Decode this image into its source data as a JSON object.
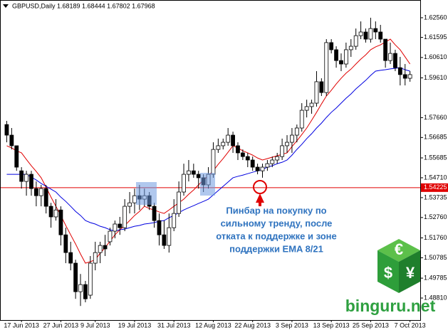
{
  "chart_data": {
    "type": "candlestick",
    "title": "GBPUSD,Daily  1.68189 1.68444 1.67802 1.67968",
    "categories": [
      null,
      null,
      null,
      "17 Jun 2013",
      null,
      null,
      null,
      null,
      null,
      null,
      null,
      "27 Jun 2013",
      null,
      null,
      null,
      null,
      null,
      null,
      "9 Jul 2013",
      null,
      null,
      null,
      null,
      null,
      null,
      null,
      "19 Jul 2013",
      null,
      null,
      null,
      null,
      null,
      null,
      null,
      "31 Jul 2013",
      null,
      null,
      null,
      null,
      null,
      null,
      null,
      "12 Aug 2013",
      null,
      null,
      null,
      null,
      null,
      null,
      null,
      "22 Aug 2013",
      null,
      null,
      null,
      null,
      null,
      null,
      null,
      "3 Sep 2013",
      null,
      null,
      null,
      null,
      null,
      null,
      null,
      "13 Sep 2013",
      null,
      null,
      null,
      null,
      null,
      null,
      null,
      "25 Sep 2013",
      null,
      null,
      null,
      null,
      null,
      null,
      null,
      "7 Oct 2013"
    ],
    "open": [
      1.5732,
      1.568,
      1.5628,
      1.5505,
      1.5453,
      1.5488,
      1.5418,
      1.5383,
      1.5418,
      1.5331,
      1.5279,
      1.5313,
      1.5191,
      1.5104,
      1.5052,
      1.4912,
      1.4947,
      1.4895,
      1.5052,
      1.5104,
      1.5139,
      1.5157,
      1.5209,
      1.5244,
      1.5226,
      1.5331,
      1.5348,
      1.5383,
      1.5366,
      1.5383,
      1.5331,
      1.5261,
      1.5191,
      1.5139,
      1.5226,
      1.5296,
      1.5401,
      1.5488,
      1.5505,
      1.5488,
      1.5471,
      1.5436,
      1.5488,
      1.561,
      1.5628,
      1.5645,
      1.568,
      1.5628,
      1.5593,
      1.5575,
      1.5558,
      1.5523,
      1.5505,
      1.5523,
      1.554,
      1.5558,
      1.5575,
      1.5628,
      1.5645,
      1.568,
      1.5715,
      1.5802,
      1.582,
      1.5837,
      1.5942,
      1.5889,
      1.6134,
      1.6099,
      1.6046,
      1.6029,
      1.6099,
      1.6116,
      1.6168,
      1.6186,
      1.6151,
      1.6203,
      1.6186,
      1.6151,
      1.6046,
      1.6081,
      1.6011,
      1.5977,
      1.5959
    ],
    "high": [
      1.575,
      1.5715,
      1.5628,
      1.5523,
      1.5505,
      1.5505,
      1.5453,
      1.5436,
      1.5436,
      1.5348,
      1.5366,
      1.5331,
      1.5226,
      1.5157,
      1.5069,
      1.4999,
      1.4965,
      1.5087,
      1.5157,
      1.5157,
      1.5191,
      1.5226,
      1.5261,
      1.5279,
      1.5366,
      1.5401,
      1.5418,
      1.5436,
      1.5418,
      1.5401,
      1.5348,
      1.5296,
      1.5261,
      1.5296,
      1.5366,
      1.5453,
      1.554,
      1.5558,
      1.554,
      1.5505,
      1.5488,
      1.5523,
      1.5645,
      1.5663,
      1.5663,
      1.5715,
      1.5697,
      1.5645,
      1.561,
      1.5593,
      1.5575,
      1.554,
      1.554,
      1.5558,
      1.5575,
      1.5593,
      1.5663,
      1.568,
      1.5715,
      1.5732,
      1.5837,
      1.5854,
      1.5854,
      1.5994,
      1.5959,
      1.6151,
      1.6151,
      1.6116,
      1.6081,
      1.6134,
      1.6151,
      1.6203,
      1.6238,
      1.6203,
      1.6256,
      1.6238,
      1.6221,
      1.6151,
      1.6134,
      1.6099,
      1.6064,
      1.6029,
      1.5994
    ],
    "low": [
      1.5645,
      1.561,
      1.5505,
      1.5418,
      1.5383,
      1.5383,
      1.5331,
      1.5331,
      1.5296,
      1.5226,
      1.5261,
      1.5139,
      1.5052,
      1.5017,
      1.4877,
      1.4842,
      1.486,
      1.4877,
      1.5017,
      1.5052,
      1.5087,
      1.5139,
      1.5174,
      1.5191,
      1.5209,
      1.5296,
      1.5296,
      1.5313,
      1.5331,
      1.5313,
      1.5226,
      1.5139,
      1.5122,
      1.5104,
      1.5209,
      1.5279,
      1.5383,
      1.5453,
      1.5471,
      1.5418,
      1.5401,
      1.5418,
      1.5471,
      1.5593,
      1.561,
      1.5628,
      1.5593,
      1.5558,
      1.5558,
      1.5523,
      1.5505,
      1.5488,
      1.5471,
      1.5505,
      1.5523,
      1.554,
      1.5558,
      1.5593,
      1.5593,
      1.5645,
      1.5697,
      1.5767,
      1.5785,
      1.582,
      1.5872,
      1.5872,
      1.6081,
      1.6011,
      1.5994,
      1.6011,
      1.6064,
      1.6099,
      1.6151,
      1.6134,
      1.6134,
      1.6151,
      1.6134,
      1.6011,
      1.6029,
      1.5994,
      1.5924,
      1.5924,
      1.5942
    ],
    "close": [
      1.568,
      1.5628,
      1.5523,
      1.5453,
      1.5488,
      1.5418,
      1.5383,
      1.5418,
      1.5331,
      1.5279,
      1.5313,
      1.5191,
      1.5104,
      1.5052,
      1.4912,
      1.4947,
      1.4877,
      1.5052,
      1.5104,
      1.5139,
      1.5122,
      1.5209,
      1.5244,
      1.5226,
      1.5331,
      1.5348,
      1.5383,
      1.5366,
      1.5383,
      1.5331,
      1.5261,
      1.5191,
      1.5139,
      1.5226,
      1.5296,
      1.5401,
      1.5488,
      1.5505,
      1.5488,
      1.5471,
      1.5436,
      1.5488,
      1.561,
      1.5628,
      1.5645,
      1.568,
      1.5628,
      1.5593,
      1.5575,
      1.5558,
      1.5523,
      1.5505,
      1.5523,
      1.554,
      1.5558,
      1.5575,
      1.5628,
      1.5645,
      1.568,
      1.5715,
      1.5802,
      1.582,
      1.5837,
      1.5942,
      1.5889,
      1.6134,
      1.6099,
      1.6046,
      1.6029,
      1.6099,
      1.6116,
      1.6168,
      1.6186,
      1.6151,
      1.6203,
      1.6186,
      1.6151,
      1.6046,
      1.6081,
      1.6011,
      1.5977,
      1.5959,
      1.5977
    ],
    "series": [
      {
        "color": "#e00000",
        "values": [
          1.5628,
          1.5617,
          1.5603,
          1.5593,
          1.5561,
          1.553,
          1.5502,
          1.5471,
          1.5425,
          1.5376,
          1.5331,
          1.5286,
          1.5237,
          1.5191,
          1.5146,
          1.5097,
          1.5052,
          1.5059,
          1.5069,
          1.5101,
          1.5128,
          1.516,
          1.5191,
          1.5216,
          1.5237,
          1.5261,
          1.5286,
          1.5306,
          1.5331,
          1.532,
          1.5313,
          1.5303,
          1.5296,
          1.5313,
          1.5331,
          1.5348,
          1.5366,
          1.539,
          1.5411,
          1.5436,
          1.546,
          1.5481,
          1.5505,
          1.5537,
          1.5565,
          1.5596,
          1.5628,
          1.5617,
          1.5603,
          1.5593,
          1.5582,
          1.5568,
          1.5558,
          1.5565,
          1.5572,
          1.5579,
          1.5586,
          1.5593,
          1.5624,
          1.5652,
          1.5683,
          1.5715,
          1.5753,
          1.5792,
          1.5833,
          1.5872,
          1.59,
          1.5931,
          1.5959,
          1.5984,
          1.6004,
          1.6029,
          1.6053,
          1.6074,
          1.6099,
          1.6113,
          1.6123,
          1.6137,
          1.6151,
          1.6123,
          1.6099,
          1.6064,
          1.6029
        ]
      },
      {
        "color": "#0000e0",
        "values": [
          1.5488,
          1.5488,
          1.5488,
          1.5488,
          1.5488,
          1.5474,
          1.546,
          1.5443,
          1.5429,
          1.5415,
          1.5401,
          1.5376,
          1.5355,
          1.5331,
          1.5306,
          1.5286,
          1.5261,
          1.5251,
          1.5244,
          1.5233,
          1.5226,
          1.5216,
          1.5209,
          1.5216,
          1.5219,
          1.5226,
          1.5233,
          1.5237,
          1.5244,
          1.5247,
          1.5251,
          1.5258,
          1.5261,
          1.5275,
          1.5286,
          1.53,
          1.5313,
          1.5324,
          1.5334,
          1.5345,
          1.5355,
          1.5366,
          1.5387,
          1.5408,
          1.5429,
          1.545,
          1.5471,
          1.5478,
          1.5484,
          1.5491,
          1.5498,
          1.5505,
          1.5512,
          1.5523,
          1.553,
          1.554,
          1.5547,
          1.5558,
          1.5582,
          1.561,
          1.5635,
          1.5663,
          1.5687,
          1.5715,
          1.5739,
          1.5767,
          1.5792,
          1.5813,
          1.5837,
          1.5861,
          1.5882,
          1.5907,
          1.5928,
          1.5949,
          1.5973,
          1.5994,
          1.5998,
          1.6001,
          1.6005,
          1.6008,
          1.6011,
          1.6001,
          1.5994
        ]
      }
    ],
    "ylim": [
      1.4773,
      1.6343
    ],
    "yticks": [
      {
        "value": 1.6256,
        "label": "1.62560"
      },
      {
        "value": 1.61595,
        "label": "1.61595"
      },
      {
        "value": 1.6061,
        "label": "1.60610"
      },
      {
        "value": 1.5961,
        "label": "1.59610"
      },
      {
        "value": 1.5766,
        "label": "1.57660"
      },
      {
        "value": 1.56685,
        "label": "1.56685"
      },
      {
        "value": 1.55685,
        "label": "1.55685"
      },
      {
        "value": 1.5471,
        "label": "1.54710"
      },
      {
        "value": 1.53735,
        "label": "1.53735"
      },
      {
        "value": 1.5276,
        "label": "1.52760"
      },
      {
        "value": 1.5176,
        "label": "1.51760"
      },
      {
        "value": 1.50785,
        "label": "1.50785"
      },
      {
        "value": 1.49785,
        "label": "1.49785"
      },
      {
        "value": 1.4881,
        "label": "1.48810"
      }
    ],
    "level": {
      "value": 1.54225,
      "label": "1.54225",
      "color": "#e00000"
    },
    "annotation": [
      "Пинбар на покупку по",
      "сильному тренду, после",
      "отката к поддержке и зоне",
      "поддержки EMA 8/21"
    ],
    "watermark": "binguru.net",
    "logo": [
      "€",
      "$",
      "¥"
    ]
  }
}
